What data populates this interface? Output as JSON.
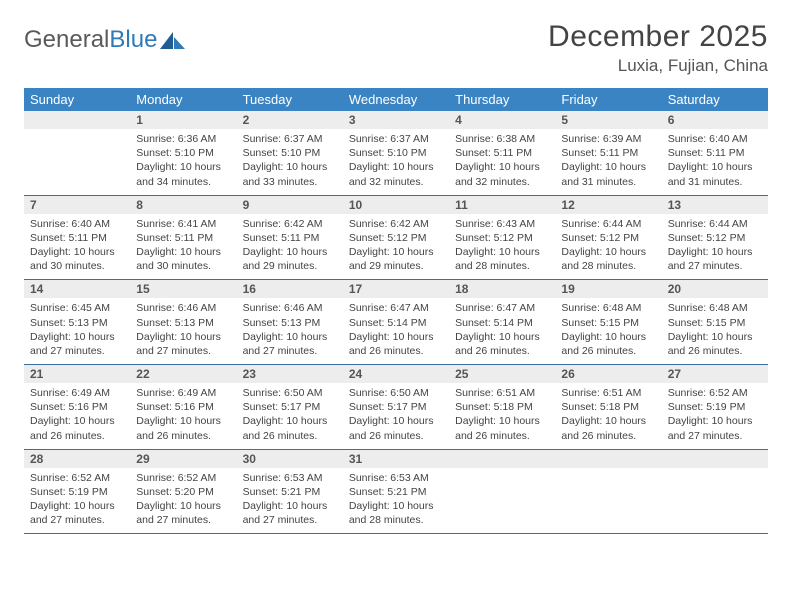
{
  "brand": {
    "name_gray": "General",
    "name_blue": "Blue"
  },
  "title": "December 2025",
  "location": "Luxia, Fujian, China",
  "colors": {
    "header_bg": "#3b84c4",
    "header_text": "#ffffff",
    "daynum_bg": "#ededed",
    "row_border": "#3b6f9e",
    "logo_blue": "#2f7ab8",
    "text": "#444444"
  },
  "weekdays": [
    "Sunday",
    "Monday",
    "Tuesday",
    "Wednesday",
    "Thursday",
    "Friday",
    "Saturday"
  ],
  "weeks": [
    [
      null,
      {
        "n": "1",
        "sr": "Sunrise: 6:36 AM",
        "ss": "Sunset: 5:10 PM",
        "dl": "Daylight: 10 hours and 34 minutes."
      },
      {
        "n": "2",
        "sr": "Sunrise: 6:37 AM",
        "ss": "Sunset: 5:10 PM",
        "dl": "Daylight: 10 hours and 33 minutes."
      },
      {
        "n": "3",
        "sr": "Sunrise: 6:37 AM",
        "ss": "Sunset: 5:10 PM",
        "dl": "Daylight: 10 hours and 32 minutes."
      },
      {
        "n": "4",
        "sr": "Sunrise: 6:38 AM",
        "ss": "Sunset: 5:11 PM",
        "dl": "Daylight: 10 hours and 32 minutes."
      },
      {
        "n": "5",
        "sr": "Sunrise: 6:39 AM",
        "ss": "Sunset: 5:11 PM",
        "dl": "Daylight: 10 hours and 31 minutes."
      },
      {
        "n": "6",
        "sr": "Sunrise: 6:40 AM",
        "ss": "Sunset: 5:11 PM",
        "dl": "Daylight: 10 hours and 31 minutes."
      }
    ],
    [
      {
        "n": "7",
        "sr": "Sunrise: 6:40 AM",
        "ss": "Sunset: 5:11 PM",
        "dl": "Daylight: 10 hours and 30 minutes."
      },
      {
        "n": "8",
        "sr": "Sunrise: 6:41 AM",
        "ss": "Sunset: 5:11 PM",
        "dl": "Daylight: 10 hours and 30 minutes."
      },
      {
        "n": "9",
        "sr": "Sunrise: 6:42 AM",
        "ss": "Sunset: 5:11 PM",
        "dl": "Daylight: 10 hours and 29 minutes."
      },
      {
        "n": "10",
        "sr": "Sunrise: 6:42 AM",
        "ss": "Sunset: 5:12 PM",
        "dl": "Daylight: 10 hours and 29 minutes."
      },
      {
        "n": "11",
        "sr": "Sunrise: 6:43 AM",
        "ss": "Sunset: 5:12 PM",
        "dl": "Daylight: 10 hours and 28 minutes."
      },
      {
        "n": "12",
        "sr": "Sunrise: 6:44 AM",
        "ss": "Sunset: 5:12 PM",
        "dl": "Daylight: 10 hours and 28 minutes."
      },
      {
        "n": "13",
        "sr": "Sunrise: 6:44 AM",
        "ss": "Sunset: 5:12 PM",
        "dl": "Daylight: 10 hours and 27 minutes."
      }
    ],
    [
      {
        "n": "14",
        "sr": "Sunrise: 6:45 AM",
        "ss": "Sunset: 5:13 PM",
        "dl": "Daylight: 10 hours and 27 minutes."
      },
      {
        "n": "15",
        "sr": "Sunrise: 6:46 AM",
        "ss": "Sunset: 5:13 PM",
        "dl": "Daylight: 10 hours and 27 minutes."
      },
      {
        "n": "16",
        "sr": "Sunrise: 6:46 AM",
        "ss": "Sunset: 5:13 PM",
        "dl": "Daylight: 10 hours and 27 minutes."
      },
      {
        "n": "17",
        "sr": "Sunrise: 6:47 AM",
        "ss": "Sunset: 5:14 PM",
        "dl": "Daylight: 10 hours and 26 minutes."
      },
      {
        "n": "18",
        "sr": "Sunrise: 6:47 AM",
        "ss": "Sunset: 5:14 PM",
        "dl": "Daylight: 10 hours and 26 minutes."
      },
      {
        "n": "19",
        "sr": "Sunrise: 6:48 AM",
        "ss": "Sunset: 5:15 PM",
        "dl": "Daylight: 10 hours and 26 minutes."
      },
      {
        "n": "20",
        "sr": "Sunrise: 6:48 AM",
        "ss": "Sunset: 5:15 PM",
        "dl": "Daylight: 10 hours and 26 minutes."
      }
    ],
    [
      {
        "n": "21",
        "sr": "Sunrise: 6:49 AM",
        "ss": "Sunset: 5:16 PM",
        "dl": "Daylight: 10 hours and 26 minutes."
      },
      {
        "n": "22",
        "sr": "Sunrise: 6:49 AM",
        "ss": "Sunset: 5:16 PM",
        "dl": "Daylight: 10 hours and 26 minutes."
      },
      {
        "n": "23",
        "sr": "Sunrise: 6:50 AM",
        "ss": "Sunset: 5:17 PM",
        "dl": "Daylight: 10 hours and 26 minutes."
      },
      {
        "n": "24",
        "sr": "Sunrise: 6:50 AM",
        "ss": "Sunset: 5:17 PM",
        "dl": "Daylight: 10 hours and 26 minutes."
      },
      {
        "n": "25",
        "sr": "Sunrise: 6:51 AM",
        "ss": "Sunset: 5:18 PM",
        "dl": "Daylight: 10 hours and 26 minutes."
      },
      {
        "n": "26",
        "sr": "Sunrise: 6:51 AM",
        "ss": "Sunset: 5:18 PM",
        "dl": "Daylight: 10 hours and 26 minutes."
      },
      {
        "n": "27",
        "sr": "Sunrise: 6:52 AM",
        "ss": "Sunset: 5:19 PM",
        "dl": "Daylight: 10 hours and 27 minutes."
      }
    ],
    [
      {
        "n": "28",
        "sr": "Sunrise: 6:52 AM",
        "ss": "Sunset: 5:19 PM",
        "dl": "Daylight: 10 hours and 27 minutes."
      },
      {
        "n": "29",
        "sr": "Sunrise: 6:52 AM",
        "ss": "Sunset: 5:20 PM",
        "dl": "Daylight: 10 hours and 27 minutes."
      },
      {
        "n": "30",
        "sr": "Sunrise: 6:53 AM",
        "ss": "Sunset: 5:21 PM",
        "dl": "Daylight: 10 hours and 27 minutes."
      },
      {
        "n": "31",
        "sr": "Sunrise: 6:53 AM",
        "ss": "Sunset: 5:21 PM",
        "dl": "Daylight: 10 hours and 28 minutes."
      },
      null,
      null,
      null
    ]
  ]
}
